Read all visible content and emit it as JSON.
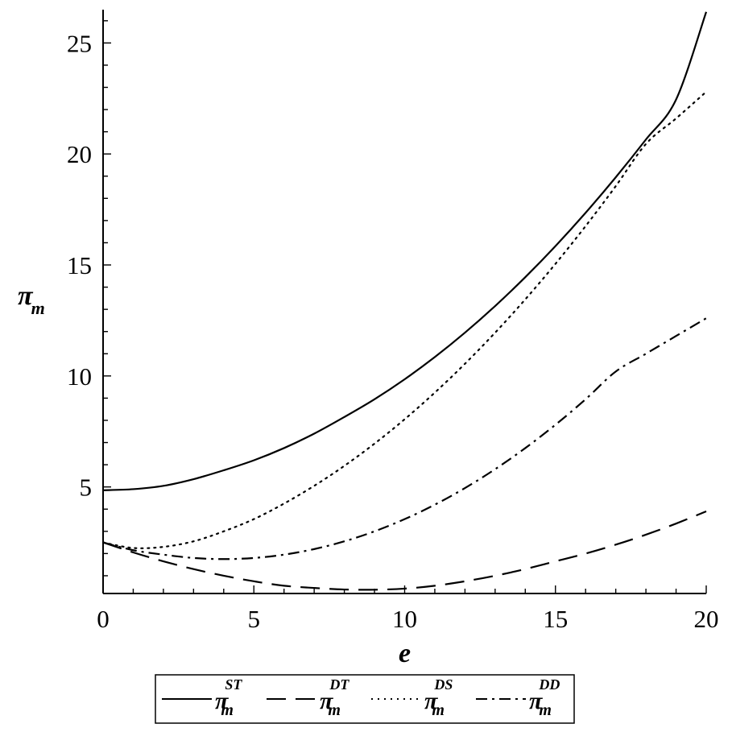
{
  "chart_data": {
    "type": "line",
    "xlabel": "e",
    "ylabel": {
      "base": "π",
      "sub": "m"
    },
    "xlim": [
      0,
      20
    ],
    "ylim": [
      0.2,
      26.5
    ],
    "xticks": [
      0,
      5,
      10,
      15,
      20
    ],
    "yticks": [
      5,
      10,
      15,
      20,
      25
    ],
    "grid": false,
    "legend_position": "bottom",
    "series": [
      {
        "name": "π_m^ST",
        "label_base": "π",
        "label_sub": "m",
        "label_sup": "ST",
        "dash": "solid",
        "color": "#000000",
        "x": [
          0,
          1,
          2,
          3,
          4,
          5,
          6,
          7,
          8,
          9,
          10,
          11,
          12,
          13,
          14,
          15,
          16,
          17,
          18,
          19,
          20
        ],
        "y": [
          4.85,
          4.9,
          5.05,
          5.35,
          5.75,
          6.2,
          6.75,
          7.4,
          8.15,
          8.95,
          9.85,
          10.85,
          11.95,
          13.15,
          14.45,
          15.85,
          17.35,
          18.95,
          20.65,
          22.45,
          26.4
        ]
      },
      {
        "name": "π_m^DT",
        "label_base": "π",
        "label_sub": "m",
        "label_sup": "DT",
        "dash": "long-dash",
        "color": "#000000",
        "x": [
          0,
          1,
          2,
          3,
          4,
          5,
          6,
          7,
          8,
          9,
          10,
          11,
          12,
          13,
          14,
          15,
          16,
          17,
          18,
          19,
          20
        ],
        "y": [
          2.5,
          2.05,
          1.65,
          1.3,
          1.0,
          0.75,
          0.55,
          0.45,
          0.38,
          0.37,
          0.42,
          0.55,
          0.75,
          1.0,
          1.3,
          1.65,
          2.0,
          2.4,
          2.85,
          3.35,
          3.9
        ]
      },
      {
        "name": "π_m^DS",
        "label_base": "π",
        "label_sub": "m",
        "label_sup": "DS",
        "dash": "dotted",
        "color": "#000000",
        "x": [
          0,
          1,
          2,
          3,
          4,
          5,
          6,
          7,
          8,
          9,
          10,
          11,
          12,
          13,
          14,
          15,
          16,
          17,
          18,
          19,
          20
        ],
        "y": [
          2.5,
          2.25,
          2.3,
          2.55,
          3.0,
          3.55,
          4.25,
          5.05,
          5.95,
          6.95,
          8.05,
          9.25,
          10.55,
          11.95,
          13.45,
          15.05,
          16.75,
          18.55,
          20.45,
          21.6,
          22.8
        ]
      },
      {
        "name": "π_m^DD",
        "label_base": "π",
        "label_sub": "m",
        "label_sup": "DD",
        "dash": "dash-dot",
        "color": "#000000",
        "x": [
          0,
          1,
          2,
          3,
          4,
          5,
          6,
          7,
          8,
          9,
          10,
          11,
          12,
          13,
          14,
          15,
          16,
          17,
          18,
          19,
          20
        ],
        "y": [
          2.5,
          2.15,
          1.95,
          1.8,
          1.75,
          1.8,
          1.95,
          2.2,
          2.55,
          3.0,
          3.55,
          4.2,
          4.95,
          5.8,
          6.75,
          7.8,
          8.95,
          10.2,
          11.0,
          11.8,
          12.6
        ]
      }
    ]
  }
}
